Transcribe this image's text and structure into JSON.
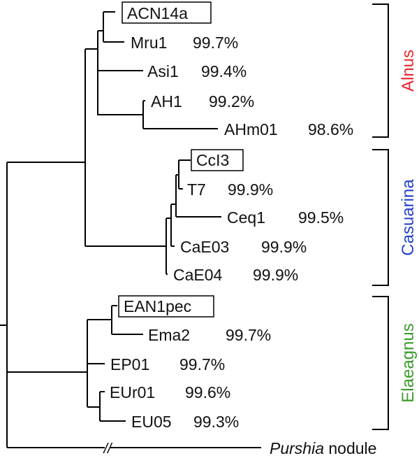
{
  "taxa": [
    {
      "name": "ACN14a",
      "identity": "",
      "reference": true
    },
    {
      "name": "Mru1",
      "identity": "99.7%"
    },
    {
      "name": "Asi1",
      "identity": "99.4%"
    },
    {
      "name": "AH1",
      "identity": "99.2%"
    },
    {
      "name": "AHm01",
      "identity": "98.6%"
    },
    {
      "name": "CcI3",
      "identity": "",
      "reference": true
    },
    {
      "name": "T7",
      "identity": "99.9%"
    },
    {
      "name": "Ceq1",
      "identity": "99.5%"
    },
    {
      "name": "CaE03",
      "identity": "99.9%"
    },
    {
      "name": "CaE04",
      "identity": "99.9%"
    },
    {
      "name": "EAN1pec",
      "identity": "",
      "reference": true
    },
    {
      "name": "Ema2",
      "identity": "99.7%"
    },
    {
      "name": "EP01",
      "identity": "99.7%"
    },
    {
      "name": "EUr01",
      "identity": "99.6%"
    },
    {
      "name": "EU05",
      "identity": "99.3%"
    }
  ],
  "outgroup": {
    "italic": "Purshia",
    "rest": " nodule"
  },
  "groups": [
    {
      "label": "Alnus",
      "color": "#e8262a"
    },
    {
      "label": "Casuarina",
      "color": "#2443c9"
    },
    {
      "label": "Elaeagnus",
      "color": "#3a9b2a"
    }
  ],
  "break_mark": "//"
}
